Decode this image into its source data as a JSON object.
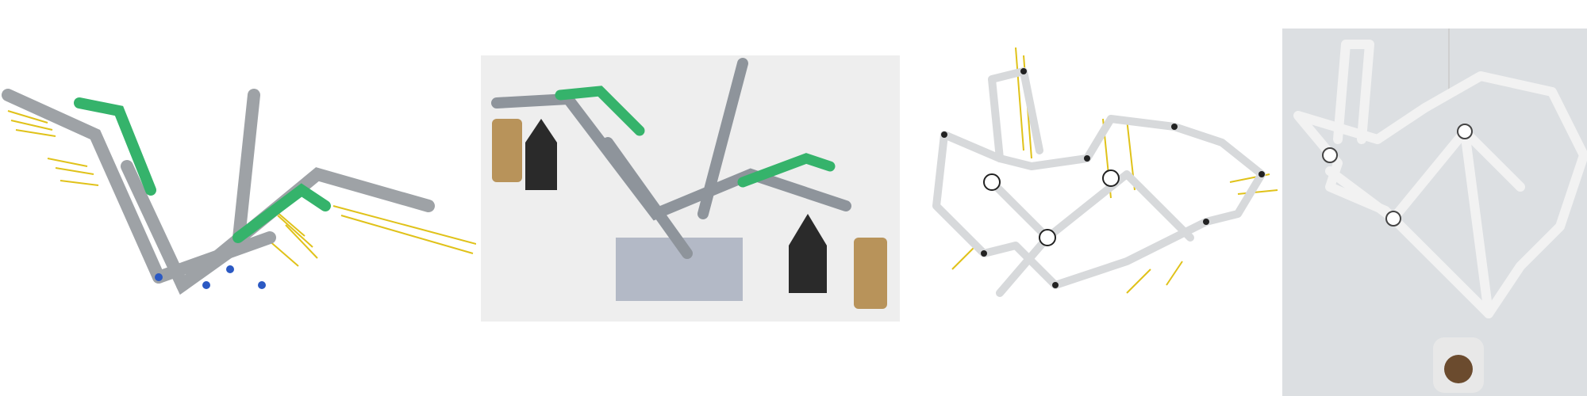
{
  "figure": {
    "panels": [
      {
        "id": "a",
        "description_name": "cad-render-bird-linkage",
        "background": "#ffffff"
      },
      {
        "id": "b",
        "description_name": "photo-lego-linkage-with-weights",
        "background": "#eeeeee"
      },
      {
        "id": "c",
        "description_name": "cad-render-heart-linkage",
        "background": "#ffffff"
      },
      {
        "id": "d",
        "description_name": "photo-printed-heart-linkage",
        "background": "#dcdfe2"
      }
    ],
    "colors": {
      "beam_gray": "#9ea2a6",
      "beam_green": "#35b36b",
      "force_arrow": "#e0c21a",
      "pin_blue": "#2b59c3",
      "weight_brass": "#b8935a",
      "weight_black": "#2a2a2a",
      "printed_white": "#f2f2f2"
    }
  }
}
